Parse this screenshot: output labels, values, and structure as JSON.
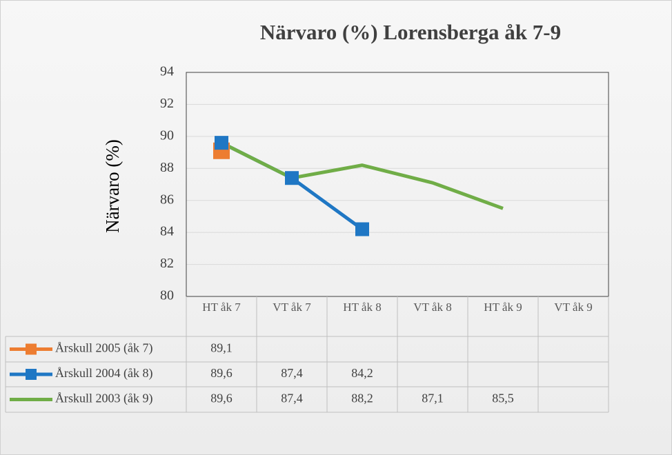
{
  "chart_data": {
    "type": "line",
    "title": "Närvaro (%) Lorensberga åk 7-9",
    "y_label": "Närvaro  (%)",
    "categories": [
      "HT åk 7",
      "VT åk 7",
      "HT åk 8",
      "VT åk 8",
      "HT åk 9",
      "VT åk 9"
    ],
    "ylim": [
      80,
      94
    ],
    "yticks": [
      80,
      82,
      84,
      86,
      88,
      90,
      92,
      94
    ],
    "grid": true,
    "series": [
      {
        "name": "Årskull 2005 (åk 7)",
        "color": "#ED7D31",
        "marker": true,
        "values": [
          89.1,
          null,
          null,
          null,
          null,
          null
        ],
        "value_labels": [
          "89,1",
          null,
          null,
          null,
          null,
          null
        ]
      },
      {
        "name": "Årskull 2004 (åk 8)",
        "color": "#1F77C4",
        "marker": true,
        "values": [
          89.6,
          87.4,
          84.2,
          null,
          null,
          null
        ],
        "value_labels": [
          "89,6",
          "87,4",
          "84,2",
          null,
          null,
          null
        ]
      },
      {
        "name": "Årskull 2003 (åk 9)",
        "color": "#70AD47",
        "marker": false,
        "values": [
          89.6,
          87.4,
          88.2,
          87.1,
          85.5,
          null
        ],
        "value_labels": [
          "89,6",
          "87,4",
          "88,2",
          "87,1",
          "85,5",
          null
        ]
      }
    ]
  }
}
